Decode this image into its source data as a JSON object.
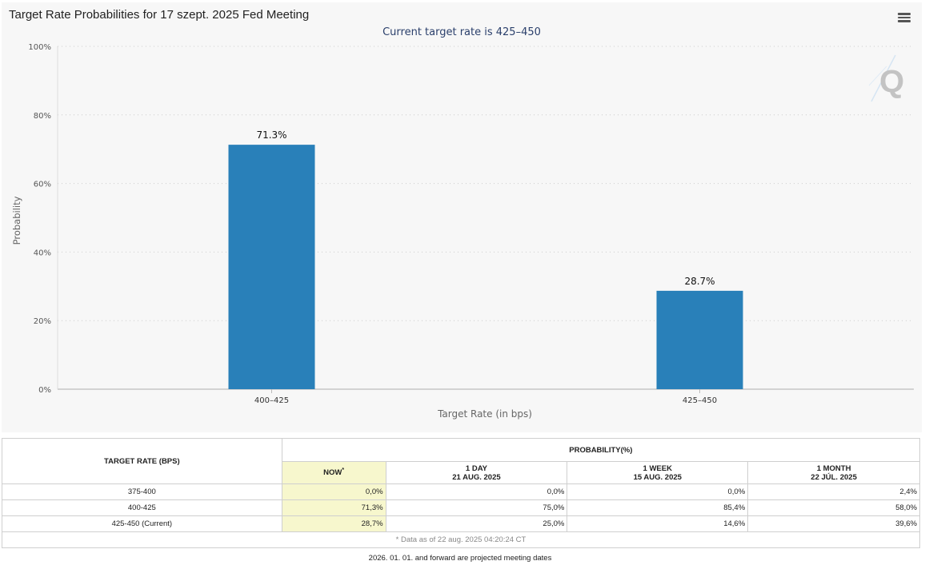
{
  "header": {
    "title": "Target Rate Probabilities for 17 szept. 2025 Fed Meeting",
    "subtitle": "Current target rate is 425–450"
  },
  "chart_data": {
    "type": "bar",
    "title": "Target Rate Probabilities for 17 szept. 2025 Fed Meeting",
    "subtitle": "Current target rate is 425–450",
    "categories": [
      "400–425",
      "425–450"
    ],
    "values": [
      71.3,
      28.7
    ],
    "data_labels": [
      "71.3%",
      "28.7%"
    ],
    "xlabel": "Target Rate (in bps)",
    "ylabel": "Probability",
    "ylim": [
      0,
      100
    ],
    "yticks": [
      0,
      20,
      40,
      60,
      80,
      100
    ],
    "ytick_labels": [
      "0%",
      "20%",
      "40%",
      "60%",
      "80%",
      "100%"
    ],
    "grid": true,
    "bar_color": "#2980b9"
  },
  "table": {
    "col_target": "TARGET RATE (BPS)",
    "col_prob": "PROBABILITY(%)",
    "subcols": [
      {
        "label": "NOW",
        "sup": "*",
        "date": ""
      },
      {
        "label": "1 DAY",
        "date": "21 AUG. 2025"
      },
      {
        "label": "1 WEEK",
        "date": "15 AUG. 2025"
      },
      {
        "label": "1 MONTH",
        "date": "22 JÚL. 2025"
      }
    ],
    "rows": [
      {
        "rate": "375-400",
        "values": [
          "0,0%",
          "0,0%",
          "0,0%",
          "2,4%"
        ]
      },
      {
        "rate": "400-425",
        "values": [
          "71,3%",
          "75,0%",
          "85,4%",
          "58,0%"
        ]
      },
      {
        "rate": "425-450 (Current)",
        "values": [
          "28,7%",
          "25,0%",
          "14,6%",
          "39,6%"
        ]
      }
    ],
    "footnote": "* Data as of 22 aug. 2025 04:20:24 CT"
  },
  "projected_note": "2026. 01. 01. and forward are projected meeting dates",
  "watermark_icon": "quikstrike-q-logo"
}
